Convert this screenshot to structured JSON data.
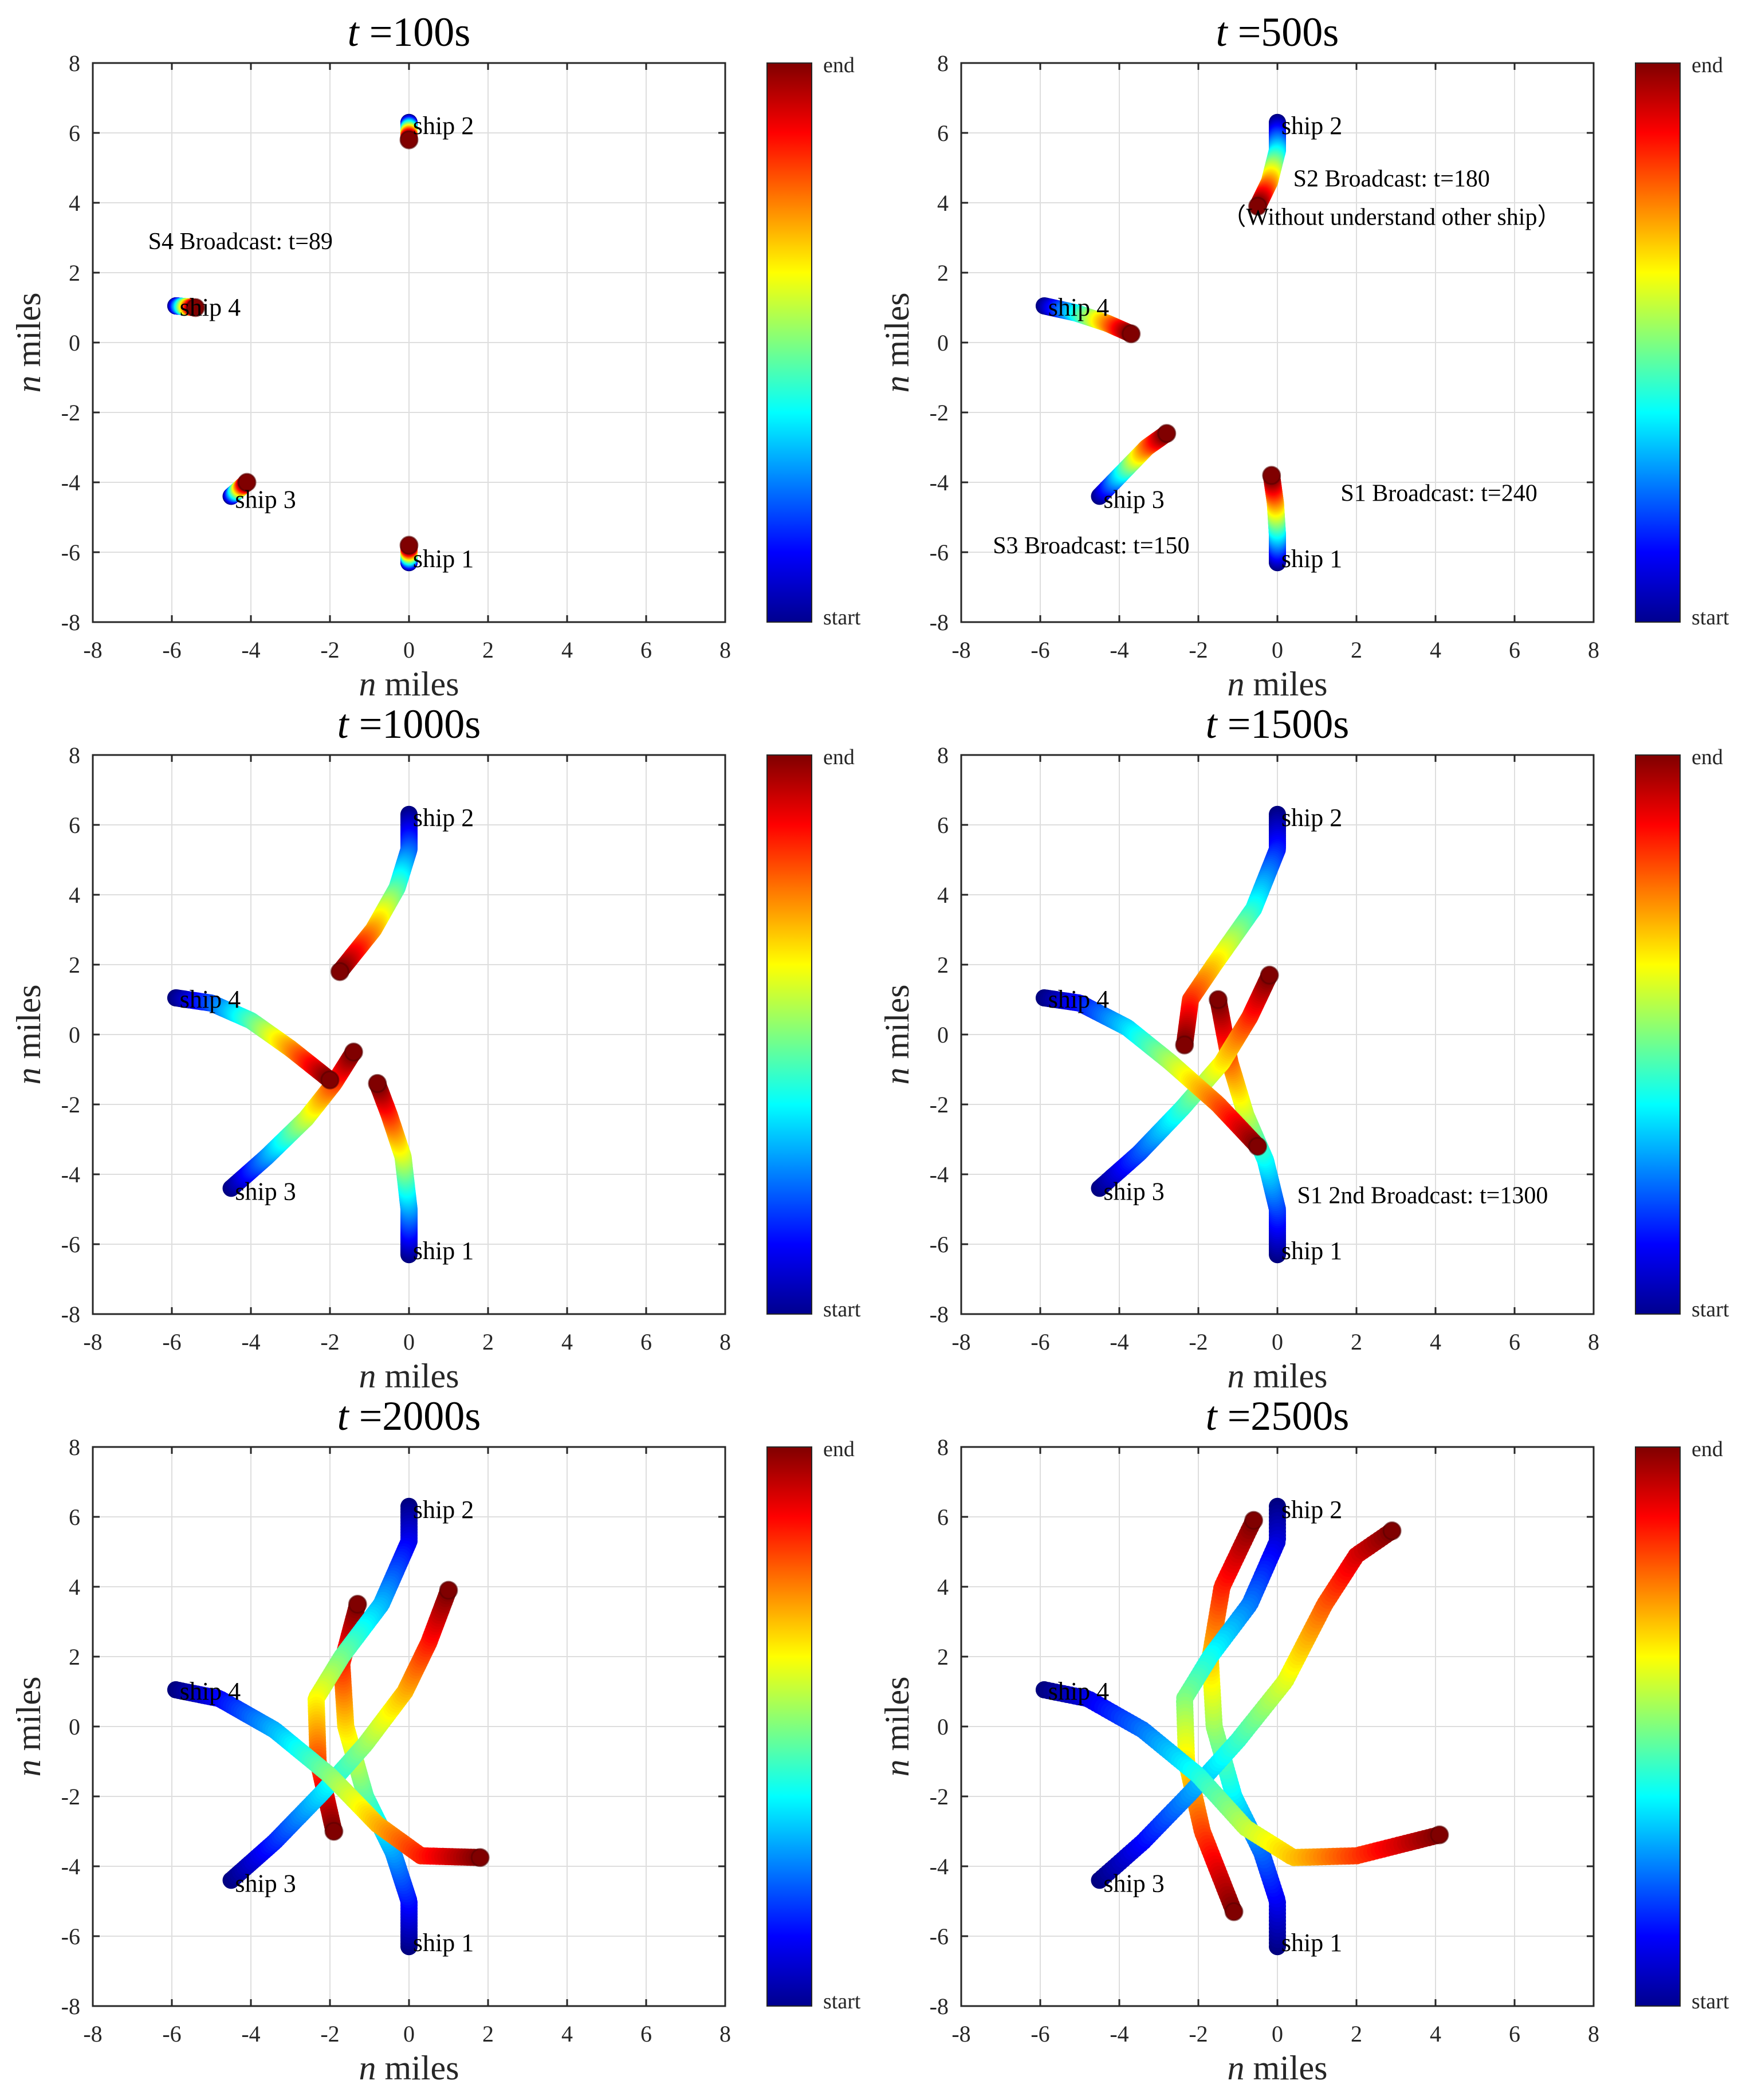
{
  "figure": {
    "x_label_italic": "n",
    "x_label_unit": "miles",
    "y_label_italic": "n",
    "y_label_unit": "miles",
    "colorbar_top_label": "end",
    "colorbar_bottom_label": "start"
  },
  "chart_data": [
    {
      "type": "line",
      "title_italic": "t",
      "title_value": "=100s",
      "xlim": [
        -8,
        8
      ],
      "ylim": [
        -8,
        8
      ],
      "xticks": [
        -8,
        -6,
        -4,
        -2,
        0,
        2,
        4,
        6,
        8
      ],
      "yticks": [
        -8,
        -6,
        -4,
        -2,
        0,
        2,
        4,
        6,
        8
      ],
      "grid": true,
      "ships": [
        {
          "label": "ship 1",
          "start": [
            0,
            -6.3
          ],
          "path": [
            [
              0,
              -6.3
            ],
            [
              0,
              -5.8
            ]
          ],
          "label_at": [
            0.1,
            -6.2
          ]
        },
        {
          "label": "ship 2",
          "start": [
            0,
            6.3
          ],
          "path": [
            [
              0,
              6.3
            ],
            [
              0,
              5.8
            ]
          ],
          "label_at": [
            0.1,
            6.2
          ]
        },
        {
          "label": "ship 3",
          "start": [
            -4.5,
            -4.4
          ],
          "path": [
            [
              -4.5,
              -4.4
            ],
            [
              -4.1,
              -4.0
            ]
          ],
          "label_at": [
            -4.4,
            -4.5
          ]
        },
        {
          "label": "ship 4",
          "start": [
            -5.9,
            1.05
          ],
          "path": [
            [
              -5.9,
              1.05
            ],
            [
              -5.4,
              1.0
            ]
          ],
          "label_at": [
            -5.8,
            1.0
          ]
        }
      ],
      "annotations": [
        {
          "text": "S4 Broadcast: t=89",
          "at": [
            -6.6,
            2.9
          ]
        }
      ]
    },
    {
      "type": "line",
      "title_italic": "t",
      "title_value": "=500s",
      "xlim": [
        -8,
        8
      ],
      "ylim": [
        -8,
        8
      ],
      "xticks": [
        -8,
        -6,
        -4,
        -2,
        0,
        2,
        4,
        6,
        8
      ],
      "yticks": [
        -8,
        -6,
        -4,
        -2,
        0,
        2,
        4,
        6,
        8
      ],
      "grid": true,
      "ships": [
        {
          "label": "ship 1",
          "start": [
            0,
            -6.3
          ],
          "path": [
            [
              0,
              -6.3
            ],
            [
              0,
              -5.5
            ],
            [
              -0.05,
              -4.6
            ],
            [
              -0.15,
              -3.8
            ]
          ],
          "label_at": [
            0.1,
            -6.2
          ]
        },
        {
          "label": "ship 2",
          "start": [
            0,
            6.3
          ],
          "path": [
            [
              0,
              6.3
            ],
            [
              0,
              5.5
            ],
            [
              -0.2,
              4.6
            ],
            [
              -0.5,
              3.9
            ]
          ],
          "label_at": [
            0.1,
            6.2
          ]
        },
        {
          "label": "ship 3",
          "start": [
            -4.5,
            -4.4
          ],
          "path": [
            [
              -4.5,
              -4.4
            ],
            [
              -3.9,
              -3.7
            ],
            [
              -3.3,
              -3.0
            ],
            [
              -2.8,
              -2.6
            ]
          ],
          "label_at": [
            -4.4,
            -4.5
          ]
        },
        {
          "label": "ship 4",
          "start": [
            -5.9,
            1.05
          ],
          "path": [
            [
              -5.9,
              1.05
            ],
            [
              -5.1,
              0.85
            ],
            [
              -4.3,
              0.55
            ],
            [
              -3.7,
              0.25
            ]
          ],
          "label_at": [
            -5.8,
            1.0
          ]
        }
      ],
      "annotations": [
        {
          "text": "S2 Broadcast: t=180",
          "at": [
            0.4,
            4.7
          ]
        },
        {
          "text": "（Without understand other ship）",
          "at": [
            -1.4,
            3.6
          ]
        },
        {
          "text": "S1 Broadcast: t=240",
          "at": [
            1.6,
            -4.3
          ]
        },
        {
          "text": "S3 Broadcast: t=150",
          "at": [
            -7.2,
            -5.8
          ]
        }
      ]
    },
    {
      "type": "line",
      "title_italic": "t",
      "title_value": "=1000s",
      "xlim": [
        -8,
        8
      ],
      "ylim": [
        -8,
        8
      ],
      "xticks": [
        -8,
        -6,
        -4,
        -2,
        0,
        2,
        4,
        6,
        8
      ],
      "yticks": [
        -8,
        -6,
        -4,
        -2,
        0,
        2,
        4,
        6,
        8
      ],
      "grid": true,
      "ships": [
        {
          "label": "ship 1",
          "start": [
            0,
            -6.3
          ],
          "path": [
            [
              0,
              -6.3
            ],
            [
              0,
              -5.0
            ],
            [
              -0.15,
              -3.5
            ],
            [
              -0.5,
              -2.3
            ],
            [
              -0.8,
              -1.4
            ]
          ],
          "label_at": [
            0.1,
            -6.2
          ]
        },
        {
          "label": "ship 2",
          "start": [
            0,
            6.3
          ],
          "path": [
            [
              0,
              6.3
            ],
            [
              0,
              5.3
            ],
            [
              -0.3,
              4.2
            ],
            [
              -0.9,
              3.0
            ],
            [
              -1.75,
              1.8
            ]
          ],
          "label_at": [
            0.1,
            6.2
          ]
        },
        {
          "label": "ship 3",
          "start": [
            -4.5,
            -4.4
          ],
          "path": [
            [
              -4.5,
              -4.4
            ],
            [
              -3.6,
              -3.5
            ],
            [
              -2.6,
              -2.4
            ],
            [
              -1.9,
              -1.4
            ],
            [
              -1.4,
              -0.5
            ]
          ],
          "label_at": [
            -4.4,
            -4.5
          ]
        },
        {
          "label": "ship 4",
          "start": [
            -5.9,
            1.05
          ],
          "path": [
            [
              -5.9,
              1.05
            ],
            [
              -5.0,
              0.9
            ],
            [
              -4.0,
              0.4
            ],
            [
              -3.0,
              -0.4
            ],
            [
              -2.0,
              -1.3
            ]
          ],
          "label_at": [
            -5.8,
            1.0
          ]
        }
      ],
      "annotations": []
    },
    {
      "type": "line",
      "title_italic": "t",
      "title_value": "=1500s",
      "xlim": [
        -8,
        8
      ],
      "ylim": [
        -8,
        8
      ],
      "xticks": [
        -8,
        -6,
        -4,
        -2,
        0,
        2,
        4,
        6,
        8
      ],
      "yticks": [
        -8,
        -6,
        -4,
        -2,
        0,
        2,
        4,
        6,
        8
      ],
      "grid": true,
      "ships": [
        {
          "label": "ship 1",
          "start": [
            0,
            -6.3
          ],
          "path": [
            [
              0,
              -6.3
            ],
            [
              0,
              -5.0
            ],
            [
              -0.3,
              -3.6
            ],
            [
              -0.8,
              -2.3
            ],
            [
              -1.2,
              -0.8
            ],
            [
              -1.5,
              1.0
            ]
          ],
          "label_at": [
            0.1,
            -6.2
          ]
        },
        {
          "label": "ship 2",
          "start": [
            0,
            6.3
          ],
          "path": [
            [
              0,
              6.3
            ],
            [
              0,
              5.3
            ],
            [
              -0.6,
              3.6
            ],
            [
              -1.6,
              2.0
            ],
            [
              -2.2,
              1.0
            ],
            [
              -2.35,
              -0.3
            ]
          ],
          "label_at": [
            0.1,
            6.2
          ]
        },
        {
          "label": "ship 3",
          "start": [
            -4.5,
            -4.4
          ],
          "path": [
            [
              -4.5,
              -4.4
            ],
            [
              -3.5,
              -3.4
            ],
            [
              -2.4,
              -2.1
            ],
            [
              -1.4,
              -0.8
            ],
            [
              -0.7,
              0.5
            ],
            [
              -0.2,
              1.7
            ]
          ],
          "label_at": [
            -4.4,
            -4.5
          ]
        },
        {
          "label": "ship 4",
          "start": [
            -5.9,
            1.05
          ],
          "path": [
            [
              -5.9,
              1.05
            ],
            [
              -5.0,
              0.9
            ],
            [
              -3.8,
              0.2
            ],
            [
              -2.7,
              -0.8
            ],
            [
              -1.5,
              -2.0
            ],
            [
              -0.5,
              -3.2
            ]
          ],
          "label_at": [
            -5.8,
            1.0
          ]
        }
      ],
      "annotations": [
        {
          "text": "S1 2nd Broadcast: t=1300",
          "at": [
            0.5,
            -4.6
          ]
        }
      ]
    },
    {
      "type": "line",
      "title_italic": "t",
      "title_value": "=2000s",
      "xlim": [
        -8,
        8
      ],
      "ylim": [
        -8,
        8
      ],
      "xticks": [
        -8,
        -6,
        -4,
        -2,
        0,
        2,
        4,
        6,
        8
      ],
      "yticks": [
        -8,
        -6,
        -4,
        -2,
        0,
        2,
        4,
        6,
        8
      ],
      "grid": true,
      "ships": [
        {
          "label": "ship 1",
          "start": [
            0,
            -6.3
          ],
          "path": [
            [
              0,
              -6.3
            ],
            [
              0,
              -5.0
            ],
            [
              -0.4,
              -3.6
            ],
            [
              -1.1,
              -2.0
            ],
            [
              -1.6,
              0.0
            ],
            [
              -1.7,
              1.8
            ],
            [
              -1.3,
              3.5
            ]
          ],
          "label_at": [
            0.1,
            -6.2
          ]
        },
        {
          "label": "ship 2",
          "start": [
            0,
            6.3
          ],
          "path": [
            [
              0,
              6.3
            ],
            [
              0,
              5.3
            ],
            [
              -0.7,
              3.5
            ],
            [
              -1.7,
              2.0
            ],
            [
              -2.35,
              0.8
            ],
            [
              -2.3,
              -1.0
            ],
            [
              -1.9,
              -3.0
            ]
          ],
          "label_at": [
            0.1,
            6.2
          ]
        },
        {
          "label": "ship 3",
          "start": [
            -4.5,
            -4.4
          ],
          "path": [
            [
              -4.5,
              -4.4
            ],
            [
              -3.4,
              -3.3
            ],
            [
              -2.2,
              -1.9
            ],
            [
              -1.1,
              -0.5
            ],
            [
              -0.1,
              1.0
            ],
            [
              0.5,
              2.4
            ],
            [
              1.0,
              3.9
            ]
          ],
          "label_at": [
            -4.4,
            -4.5
          ]
        },
        {
          "label": "ship 4",
          "start": [
            -5.9,
            1.05
          ],
          "path": [
            [
              -5.9,
              1.05
            ],
            [
              -4.8,
              0.8
            ],
            [
              -3.4,
              -0.1
            ],
            [
              -2.0,
              -1.4
            ],
            [
              -0.8,
              -2.8
            ],
            [
              0.3,
              -3.7
            ],
            [
              1.8,
              -3.75
            ]
          ],
          "label_at": [
            -5.8,
            1.0
          ]
        }
      ],
      "annotations": []
    },
    {
      "type": "line",
      "title_italic": "t",
      "title_value": "=2500s",
      "xlim": [
        -8,
        8
      ],
      "ylim": [
        -8,
        8
      ],
      "xticks": [
        -8,
        -6,
        -4,
        -2,
        0,
        2,
        4,
        6,
        8
      ],
      "yticks": [
        -8,
        -6,
        -4,
        -2,
        0,
        2,
        4,
        6,
        8
      ],
      "grid": true,
      "ships": [
        {
          "label": "ship 1",
          "start": [
            0,
            -6.3
          ],
          "path": [
            [
              0,
              -6.3
            ],
            [
              0,
              -5.0
            ],
            [
              -0.4,
              -3.6
            ],
            [
              -1.1,
              -2.0
            ],
            [
              -1.6,
              0.0
            ],
            [
              -1.7,
              2.0
            ],
            [
              -1.4,
              4.0
            ],
            [
              -0.6,
              5.9
            ]
          ],
          "label_at": [
            0.1,
            -6.2
          ]
        },
        {
          "label": "ship 2",
          "start": [
            0,
            6.3
          ],
          "path": [
            [
              0,
              6.3
            ],
            [
              0,
              5.3
            ],
            [
              -0.7,
              3.5
            ],
            [
              -1.7,
              2.0
            ],
            [
              -2.35,
              0.8
            ],
            [
              -2.3,
              -1.0
            ],
            [
              -1.9,
              -3.0
            ],
            [
              -1.1,
              -5.3
            ]
          ],
          "label_at": [
            0.1,
            6.2
          ]
        },
        {
          "label": "ship 3",
          "start": [
            -4.5,
            -4.4
          ],
          "path": [
            [
              -4.5,
              -4.4
            ],
            [
              -3.4,
              -3.3
            ],
            [
              -2.2,
              -1.9
            ],
            [
              -1.0,
              -0.4
            ],
            [
              0.2,
              1.3
            ],
            [
              1.2,
              3.5
            ],
            [
              2.0,
              4.9
            ],
            [
              2.9,
              5.6
            ]
          ],
          "label_at": [
            -4.4,
            -4.5
          ]
        },
        {
          "label": "ship 4",
          "start": [
            -5.9,
            1.05
          ],
          "path": [
            [
              -5.9,
              1.05
            ],
            [
              -4.8,
              0.8
            ],
            [
              -3.4,
              -0.1
            ],
            [
              -2.0,
              -1.4
            ],
            [
              -0.8,
              -2.9
            ],
            [
              0.4,
              -3.75
            ],
            [
              2.0,
              -3.7
            ],
            [
              4.1,
              -3.1
            ]
          ],
          "label_at": [
            -5.8,
            1.0
          ]
        }
      ],
      "annotations": []
    }
  ]
}
